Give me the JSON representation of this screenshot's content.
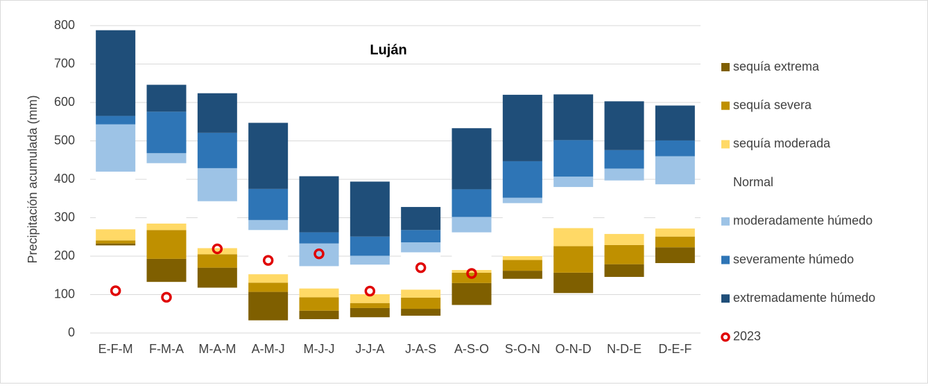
{
  "chart_data": {
    "type": "floating-stacked-bar",
    "title": "Luján",
    "y_label": "Precipitación acumulada (mm)",
    "categories": [
      "E-F-M",
      "F-M-A",
      "M-A-M",
      "A-M-J",
      "M-J-J",
      "J-J-A",
      "J-A-S",
      "A-S-O",
      "S-O-N",
      "O-N-D",
      "N-D-E",
      "D-E-F"
    ],
    "base": [
      228,
      133,
      118,
      33,
      36,
      41,
      45,
      73,
      141,
      104,
      146,
      182
    ],
    "series": [
      {
        "name": "sequía extrema",
        "color": "#7f5f00",
        "values": [
          5,
          60,
          52,
          74,
          22,
          24,
          18,
          57,
          21,
          53,
          33,
          41
        ]
      },
      {
        "name": "sequía severa",
        "color": "#bf9000",
        "values": [
          8,
          75,
          35,
          24,
          35,
          13,
          29,
          27,
          28,
          69,
          50,
          28
        ]
      },
      {
        "name": "sequía moderada",
        "color": "#ffd966",
        "values": [
          29,
          17,
          16,
          22,
          23,
          23,
          21,
          7,
          10,
          47,
          29,
          21
        ]
      },
      {
        "name": "Normal",
        "color": "#ffffff",
        "values": [
          150,
          157,
          122,
          115,
          58,
          77,
          97,
          98,
          138,
          107,
          139,
          115
        ]
      },
      {
        "name": "moderadamente húmedo",
        "color": "#9dc3e6",
        "values": [
          123,
          26,
          86,
          26,
          59,
          23,
          26,
          40,
          14,
          27,
          31,
          73
        ]
      },
      {
        "name": "severamente húmedo",
        "color": "#2e75b6",
        "values": [
          22,
          108,
          92,
          81,
          29,
          50,
          32,
          72,
          95,
          95,
          48,
          41
        ]
      },
      {
        "name": "extremadamente húmedo",
        "color": "#1f4e79",
        "values": [
          223,
          70,
          103,
          172,
          146,
          143,
          60,
          159,
          173,
          119,
          127,
          91
        ]
      }
    ],
    "points": {
      "name": "2023",
      "color": "#e00000",
      "values": [
        110,
        93,
        219,
        189,
        206,
        109,
        170,
        155,
        null,
        null,
        null,
        null
      ]
    },
    "ylim": [
      0,
      800
    ],
    "yticks": [
      0,
      100,
      200,
      300,
      400,
      500,
      600,
      700,
      800
    ],
    "grid": true
  }
}
